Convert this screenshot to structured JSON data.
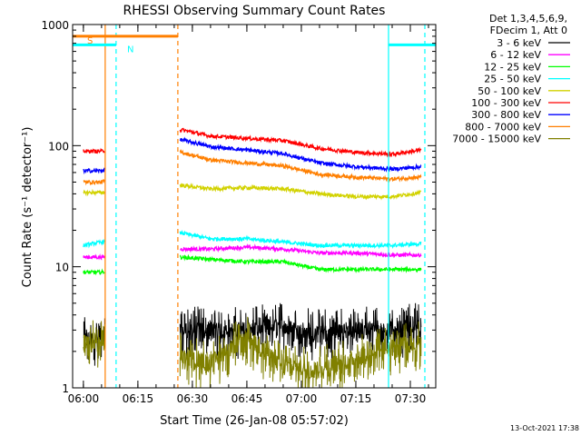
{
  "chart_data": {
    "type": "line",
    "title": "RHESSI Observing Summary Count Rates",
    "xlabel": "Start Time (26-Jan-08 05:57:02)",
    "ylabel": "Count Rate (s⁻¹ detector⁻¹)",
    "ylog": true,
    "ylim": [
      1,
      1000
    ],
    "xlim": [
      "05:57:02",
      "07:37:00"
    ],
    "x_ticks": [
      "06:00",
      "06:15",
      "06:30",
      "06:45",
      "07:00",
      "07:15",
      "07:30"
    ],
    "y_ticks": [
      "1",
      "10",
      "100",
      "1000"
    ],
    "legend_header": [
      "Det 1,3,4,5,6,9,",
      "FDecim 1, Att 0"
    ],
    "legend_position": "right",
    "x": [
      "06:00",
      "06:05",
      "06:27",
      "06:35",
      "06:45",
      "06:55",
      "07:05",
      "07:15",
      "07:25",
      "07:33"
    ],
    "series": [
      {
        "name": "3 - 6 keV",
        "color": "#000000",
        "values": [
          2.5,
          2.5,
          3.0,
          3.0,
          3.0,
          3.2,
          2.8,
          3.0,
          3.0,
          3.2
        ]
      },
      {
        "name": "6 - 12 keV",
        "color": "#ff00ff",
        "values": [
          12,
          12,
          14,
          14,
          14.5,
          14,
          13,
          13,
          12.5,
          12.5
        ]
      },
      {
        "name": "12 - 25 keV",
        "color": "#00ff00",
        "values": [
          9,
          9,
          12,
          11.5,
          11,
          11,
          9.5,
          9.5,
          9.5,
          9.5
        ]
      },
      {
        "name": "25 - 50 keV",
        "color": "#00ffff",
        "values": [
          15,
          16,
          19,
          17,
          17,
          16,
          15,
          15,
          15,
          15.5
        ]
      },
      {
        "name": "50 - 100 keV",
        "color": "#d2d200",
        "values": [
          41,
          41,
          47,
          44,
          45,
          44,
          40,
          38,
          38,
          41
        ]
      },
      {
        "name": "100 - 300 keV",
        "color": "#ff0000",
        "values": [
          90,
          90,
          135,
          120,
          115,
          110,
          95,
          88,
          85,
          92
        ]
      },
      {
        "name": "300 - 800 keV",
        "color": "#0000ff",
        "values": [
          62,
          62,
          112,
          98,
          92,
          86,
          72,
          67,
          64,
          67
        ]
      },
      {
        "name": "800 - 7000 keV",
        "color": "#ff7f00",
        "values": [
          50,
          50,
          88,
          76,
          72,
          68,
          58,
          55,
          53,
          55
        ]
      },
      {
        "name": "7000 - 15000 keV",
        "color": "#808000",
        "values": [
          2.3,
          2.3,
          1.8,
          1.6,
          2.6,
          1.5,
          1.4,
          1.8,
          2.2,
          2.4
        ]
      }
    ],
    "gap": [
      "06:06",
      "06:26"
    ],
    "annotations": [
      {
        "text": "S",
        "color": "#ff7f00",
        "start": "05:57:02",
        "end": "06:26",
        "y": 800
      },
      {
        "text": "N",
        "color": "#00ffff",
        "start": "05:57:02",
        "end": "06:09",
        "y": 680
      },
      {
        "text": "",
        "color": "#00ffff",
        "start": "07:24",
        "end": "07:37",
        "y": 680
      }
    ],
    "vlines": [
      {
        "time": "06:06",
        "color": "#ff7f00",
        "style": "solid"
      },
      {
        "time": "06:09",
        "color": "#00ffff",
        "style": "dashed"
      },
      {
        "time": "06:26",
        "color": "#ff7f00",
        "style": "dashed"
      },
      {
        "time": "07:24",
        "color": "#00ffff",
        "style": "solid"
      },
      {
        "time": "07:34",
        "color": "#00ffff",
        "style": "dashed"
      }
    ],
    "footer": "13-Oct-2021 17:38"
  }
}
